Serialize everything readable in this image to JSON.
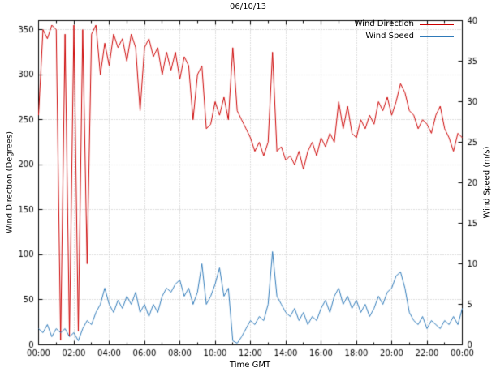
{
  "chart_data": {
    "type": "line",
    "title": "06/10/13",
    "xlabel": "Time GMT",
    "ylabel_left": "Wind Direction (Degrees)",
    "ylabel_right": "Wind Speed (m/s)",
    "grid": true,
    "legend_position": "top-right",
    "x_range": [
      0,
      24
    ],
    "x_start": 0,
    "x_step": 0.25,
    "x_ticks": [
      0,
      2,
      4,
      6,
      8,
      10,
      12,
      14,
      16,
      18,
      20,
      22,
      24
    ],
    "x_tick_labels": [
      "00:00",
      "02:00",
      "04:00",
      "06:00",
      "08:00",
      "10:00",
      "12:00",
      "14:00",
      "16:00",
      "18:00",
      "20:00",
      "22:00",
      "00:00"
    ],
    "y_left_range": [
      0,
      360
    ],
    "y_left_ticks": [
      0,
      50,
      100,
      150,
      200,
      250,
      300,
      350
    ],
    "y_right_range": [
      0,
      40
    ],
    "y_right_ticks": [
      0,
      5,
      10,
      15,
      20,
      25,
      30,
      35,
      40
    ],
    "colors": {
      "grid": "#b8b8b8",
      "axis": "#000000",
      "wind_direction": "#cc0000",
      "wind_speed": "#2f7ab9"
    },
    "series": [
      {
        "name": "Wind Direction",
        "axis": "left",
        "color": "#cc0000",
        "values": [
          255,
          350,
          340,
          355,
          350,
          5,
          345,
          10,
          355,
          15,
          350,
          90,
          345,
          355,
          300,
          335,
          310,
          345,
          330,
          340,
          315,
          345,
          330,
          260,
          330,
          340,
          320,
          330,
          300,
          325,
          305,
          325,
          295,
          320,
          310,
          250,
          300,
          310,
          240,
          245,
          270,
          255,
          275,
          250,
          330,
          260,
          250,
          240,
          230,
          215,
          225,
          210,
          225,
          325,
          215,
          220,
          205,
          210,
          200,
          215,
          195,
          215,
          225,
          210,
          230,
          220,
          235,
          225,
          270,
          240,
          265,
          235,
          230,
          250,
          240,
          255,
          245,
          270,
          260,
          275,
          255,
          270,
          290,
          280,
          260,
          255,
          240,
          250,
          245,
          235,
          255,
          265,
          240,
          230,
          215,
          235,
          230
        ]
      },
      {
        "name": "Wind Speed",
        "axis": "right",
        "color": "#2f7ab9",
        "values": [
          2,
          1.5,
          2.5,
          1,
          2,
          1.5,
          2,
          1,
          1.5,
          0.5,
          2,
          3,
          2.5,
          4,
          5,
          7,
          5,
          4,
          5.5,
          4.5,
          6,
          5,
          6.5,
          4,
          5,
          3.5,
          5,
          4,
          6,
          7,
          6.5,
          7.5,
          8,
          6,
          7,
          5,
          6.5,
          10,
          5,
          6,
          7.5,
          9.5,
          6,
          7,
          0.5,
          0.2,
          1,
          2,
          3,
          2.5,
          3.5,
          3,
          5,
          11.5,
          6,
          5,
          4,
          3.5,
          4.5,
          3,
          4,
          2.5,
          3.5,
          3,
          4.5,
          5.5,
          4,
          6,
          7,
          5,
          6,
          4.5,
          5.5,
          4,
          5,
          3.5,
          4.5,
          6,
          5,
          6.5,
          7,
          8.5,
          9,
          7,
          4,
          3,
          2.5,
          3.5,
          2,
          3,
          2.5,
          2,
          3,
          2.5,
          3.5,
          2.5,
          4.5
        ]
      }
    ]
  }
}
